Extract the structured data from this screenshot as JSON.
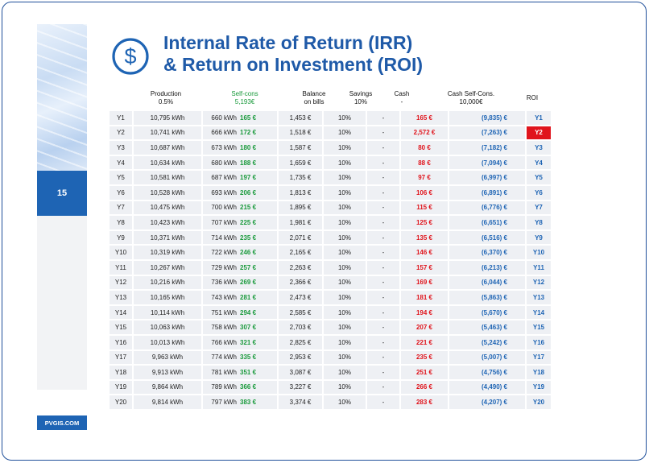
{
  "page": {
    "number": "15",
    "brand": "PVGIS.COM"
  },
  "title": {
    "line1": "Internal Rate of Return (IRR)",
    "line2": "& Return on Investment (ROI)"
  },
  "icon": "dollar-circle-icon",
  "colors": {
    "accent": "#1e64b4",
    "title": "#1f5aa8",
    "green": "#1a9a3c",
    "red": "#e0141c"
  },
  "headers": {
    "production": {
      "line1": "Production",
      "line2": "0.5%"
    },
    "selfcons": {
      "line1": "Self-cons",
      "line2": "5,193€"
    },
    "balance": {
      "line1": "Balance",
      "line2": "on bills"
    },
    "savings": {
      "line1": "Savings",
      "line2": "10%"
    },
    "cash": {
      "line1": "Cash",
      "line2": "-"
    },
    "cashself": {
      "line1": "Cash Self-Cons.",
      "line2": "10,000€"
    },
    "roi": {
      "line1": "ROI"
    }
  },
  "rows": [
    {
      "year": "Y1",
      "production": "10,795 kWh",
      "self_kwh": "660 kWh",
      "self_eur": "165 €",
      "balance": "1,453 €",
      "savings": "10%",
      "cash": "-",
      "cash_self": "165 €",
      "cash_self_cum": "(9,835) €",
      "roi": "Y1"
    },
    {
      "year": "Y2",
      "production": "10,741 kWh",
      "self_kwh": "666 kWh",
      "self_eur": "172 €",
      "balance": "1,518 €",
      "savings": "10%",
      "cash": "-",
      "cash_self": "2,572 €",
      "cash_self_cum": "(7,263) €",
      "roi": "Y2"
    },
    {
      "year": "Y3",
      "production": "10,687 kWh",
      "self_kwh": "673 kWh",
      "self_eur": "180 €",
      "balance": "1,587 €",
      "savings": "10%",
      "cash": "-",
      "cash_self": "80 €",
      "cash_self_cum": "(7,182) €",
      "roi": "Y3"
    },
    {
      "year": "Y4",
      "production": "10,634 kWh",
      "self_kwh": "680 kWh",
      "self_eur": "188 €",
      "balance": "1,659 €",
      "savings": "10%",
      "cash": "-",
      "cash_self": "88 €",
      "cash_self_cum": "(7,094) €",
      "roi": "Y4"
    },
    {
      "year": "Y5",
      "production": "10,581 kWh",
      "self_kwh": "687 kWh",
      "self_eur": "197 €",
      "balance": "1,735 €",
      "savings": "10%",
      "cash": "-",
      "cash_self": "97 €",
      "cash_self_cum": "(6,997) €",
      "roi": "Y5"
    },
    {
      "year": "Y6",
      "production": "10,528 kWh",
      "self_kwh": "693 kWh",
      "self_eur": "206 €",
      "balance": "1,813 €",
      "savings": "10%",
      "cash": "-",
      "cash_self": "106 €",
      "cash_self_cum": "(6,891) €",
      "roi": "Y6"
    },
    {
      "year": "Y7",
      "production": "10,475 kWh",
      "self_kwh": "700 kWh",
      "self_eur": "215 €",
      "balance": "1,895 €",
      "savings": "10%",
      "cash": "-",
      "cash_self": "115 €",
      "cash_self_cum": "(6,776) €",
      "roi": "Y7"
    },
    {
      "year": "Y8",
      "production": "10,423 kWh",
      "self_kwh": "707 kWh",
      "self_eur": "225 €",
      "balance": "1,981 €",
      "savings": "10%",
      "cash": "-",
      "cash_self": "125 €",
      "cash_self_cum": "(6,651) €",
      "roi": "Y8"
    },
    {
      "year": "Y9",
      "production": "10,371 kWh",
      "self_kwh": "714 kWh",
      "self_eur": "235 €",
      "balance": "2,071 €",
      "savings": "10%",
      "cash": "-",
      "cash_self": "135 €",
      "cash_self_cum": "(6,516) €",
      "roi": "Y9"
    },
    {
      "year": "Y10",
      "production": "10,319 kWh",
      "self_kwh": "722 kWh",
      "self_eur": "246 €",
      "balance": "2,165 €",
      "savings": "10%",
      "cash": "-",
      "cash_self": "146 €",
      "cash_self_cum": "(6,370) €",
      "roi": "Y10"
    },
    {
      "year": "Y11",
      "production": "10,267 kWh",
      "self_kwh": "729 kWh",
      "self_eur": "257 €",
      "balance": "2,263 €",
      "savings": "10%",
      "cash": "-",
      "cash_self": "157 €",
      "cash_self_cum": "(6,213) €",
      "roi": "Y11"
    },
    {
      "year": "Y12",
      "production": "10,216 kWh",
      "self_kwh": "736 kWh",
      "self_eur": "269 €",
      "balance": "2,366 €",
      "savings": "10%",
      "cash": "-",
      "cash_self": "169 €",
      "cash_self_cum": "(6,044) €",
      "roi": "Y12"
    },
    {
      "year": "Y13",
      "production": "10,165 kWh",
      "self_kwh": "743 kWh",
      "self_eur": "281 €",
      "balance": "2,473 €",
      "savings": "10%",
      "cash": "-",
      "cash_self": "181 €",
      "cash_self_cum": "(5,863) €",
      "roi": "Y13"
    },
    {
      "year": "Y14",
      "production": "10,114 kWh",
      "self_kwh": "751 kWh",
      "self_eur": "294 €",
      "balance": "2,585 €",
      "savings": "10%",
      "cash": "-",
      "cash_self": "194 €",
      "cash_self_cum": "(5,670) €",
      "roi": "Y14"
    },
    {
      "year": "Y15",
      "production": "10,063 kWh",
      "self_kwh": "758 kWh",
      "self_eur": "307 €",
      "balance": "2,703 €",
      "savings": "10%",
      "cash": "-",
      "cash_self": "207 €",
      "cash_self_cum": "(5,463) €",
      "roi": "Y15"
    },
    {
      "year": "Y16",
      "production": "10,013 kWh",
      "self_kwh": "766 kWh",
      "self_eur": "321 €",
      "balance": "2,825 €",
      "savings": "10%",
      "cash": "-",
      "cash_self": "221 €",
      "cash_self_cum": "(5,242) €",
      "roi": "Y16"
    },
    {
      "year": "Y17",
      "production": "9,963 kWh",
      "self_kwh": "774 kWh",
      "self_eur": "335 €",
      "balance": "2,953 €",
      "savings": "10%",
      "cash": "-",
      "cash_self": "235 €",
      "cash_self_cum": "(5,007) €",
      "roi": "Y17"
    },
    {
      "year": "Y18",
      "production": "9,913 kWh",
      "self_kwh": "781 kWh",
      "self_eur": "351 €",
      "balance": "3,087 €",
      "savings": "10%",
      "cash": "-",
      "cash_self": "251 €",
      "cash_self_cum": "(4,756) €",
      "roi": "Y18"
    },
    {
      "year": "Y19",
      "production": "9,864 kWh",
      "self_kwh": "789 kWh",
      "self_eur": "366 €",
      "balance": "3,227 €",
      "savings": "10%",
      "cash": "-",
      "cash_self": "266 €",
      "cash_self_cum": "(4,490) €",
      "roi": "Y19"
    },
    {
      "year": "Y20",
      "production": "9,814 kWh",
      "self_kwh": "797 kWh",
      "self_eur": "383 €",
      "balance": "3,374 €",
      "savings": "10%",
      "cash": "-",
      "cash_self": "283 €",
      "cash_self_cum": "(4,207) €",
      "roi": "Y20"
    }
  ],
  "highlight_roi_year": "Y2"
}
